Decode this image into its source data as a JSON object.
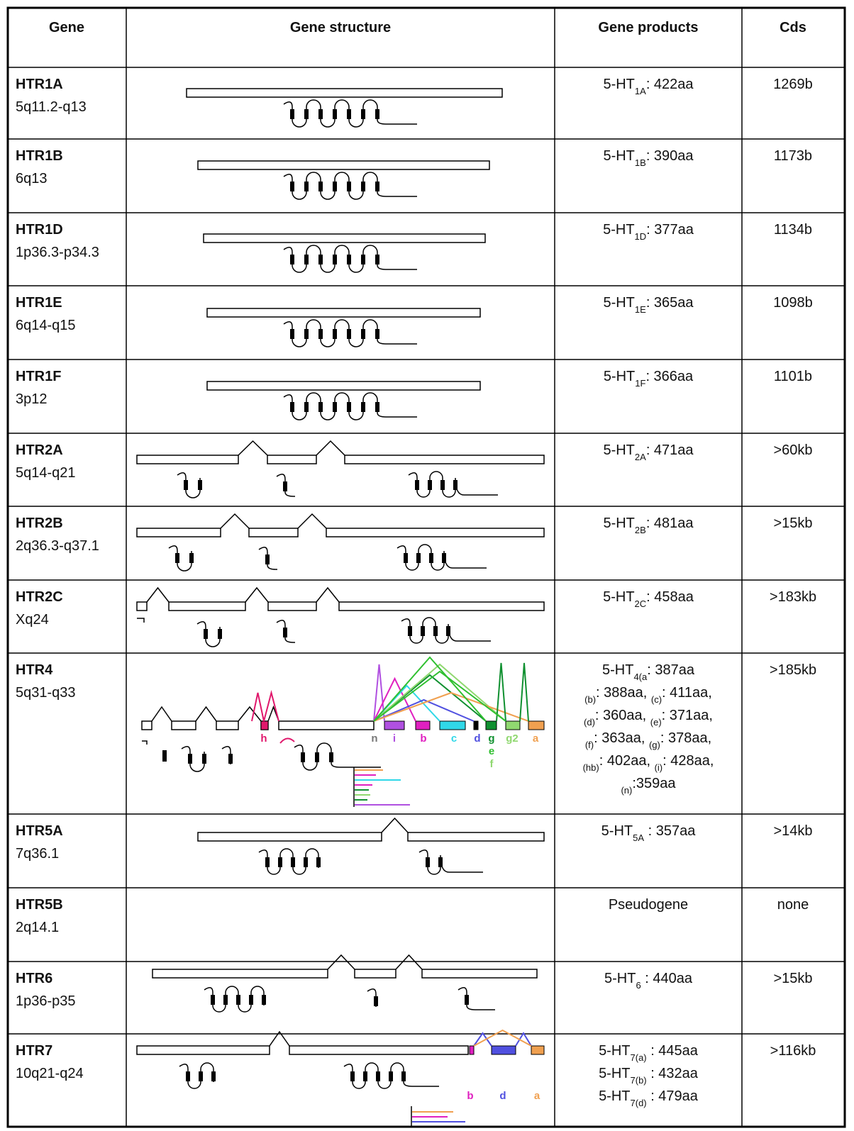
{
  "table": {
    "header": [
      "Gene",
      "Gene structure",
      "Gene products",
      "Cds"
    ],
    "rows": [
      {
        "gene": "HTR1A",
        "location": "5q11.2-q13",
        "products": [
          [
            {
              "text": "5-HT"
            },
            {
              "sub": "1A"
            },
            {
              "text": ": 422aa"
            }
          ]
        ],
        "cds": "1269b"
      },
      {
        "gene": "HTR1B",
        "location": "6q13",
        "products": [
          [
            {
              "text": "5-HT"
            },
            {
              "sub": "1B"
            },
            {
              "text": ": 390aa"
            }
          ]
        ],
        "cds": "1173b"
      },
      {
        "gene": "HTR1D",
        "location": "1p36.3-p34.3",
        "products": [
          [
            {
              "text": "5-HT"
            },
            {
              "sub": "1D"
            },
            {
              "text": ": 377aa"
            }
          ]
        ],
        "cds": "1134b"
      },
      {
        "gene": "HTR1E",
        "location": "6q14-q15",
        "products": [
          [
            {
              "text": "5-HT"
            },
            {
              "sub": "1E"
            },
            {
              "text": ": 365aa"
            }
          ]
        ],
        "cds": "1098b"
      },
      {
        "gene": "HTR1F",
        "location": "3p12",
        "products": [
          [
            {
              "text": "5-HT"
            },
            {
              "sub": "1F"
            },
            {
              "text": ": 366aa"
            }
          ]
        ],
        "cds": "1101b"
      },
      {
        "gene": "HTR2A",
        "location": "5q14-q21",
        "products": [
          [
            {
              "text": "5-HT"
            },
            {
              "sub": "2A"
            },
            {
              "text": ": 471aa"
            }
          ]
        ],
        "cds": ">60kb"
      },
      {
        "gene": "HTR2B",
        "location": "2q36.3-q37.1",
        "products": [
          [
            {
              "text": "5-HT"
            },
            {
              "sub": "2B"
            },
            {
              "text": ": 481aa"
            }
          ]
        ],
        "cds": ">15kb"
      },
      {
        "gene": "HTR2C",
        "location": "Xq24",
        "products": [
          [
            {
              "text": "5-HT"
            },
            {
              "sub": "2C"
            },
            {
              "text": ": 458aa"
            }
          ]
        ],
        "cds": ">183kb"
      },
      {
        "gene": "HTR4",
        "location": "5q31-q33",
        "products": [
          [
            {
              "text": "5-HT"
            },
            {
              "sub": "4(a"
            },
            {
              "text": ": 387aa"
            }
          ],
          [
            {
              "sub": "(b)"
            },
            {
              "text": ": 388aa, "
            },
            {
              "sub": "(c)"
            },
            {
              "text": ": 411aa,"
            }
          ],
          [
            {
              "sub": "(d)"
            },
            {
              "text": ": 360aa, "
            },
            {
              "sub": "(e)"
            },
            {
              "text": ": 371aa,"
            }
          ],
          [
            {
              "sub": "(f)"
            },
            {
              "text": ": 363aa, "
            },
            {
              "sub": "(g)"
            },
            {
              "text": ": 378aa,"
            }
          ],
          [
            {
              "sub": "(hb)"
            },
            {
              "text": ": 402aa, "
            },
            {
              "sub": "(i)"
            },
            {
              "text": ": 428aa,"
            }
          ],
          [
            {
              "sub": "(n)"
            },
            {
              "text": ":359aa"
            }
          ]
        ],
        "labels": [
          {
            "text": "h",
            "color": "#e0186c"
          },
          {
            "text": "n",
            "color": "#777777"
          },
          {
            "text": "i",
            "color": "#b050e0"
          },
          {
            "text": "b",
            "color": "#e020c0"
          },
          {
            "text": "c",
            "color": "#30d8e8"
          },
          {
            "text": "d",
            "color": "#5050e0"
          },
          {
            "text": "g",
            "color": "#109030"
          },
          {
            "text": "g2",
            "color": "#90d870"
          },
          {
            "text": "a",
            "color": "#f0a050"
          },
          {
            "text": "e",
            "color": "#30c030"
          },
          {
            "text": "f",
            "color": "#90d870"
          }
        ],
        "cds": ">185kb"
      },
      {
        "gene": "HTR5A",
        "location": "7q36.1",
        "products": [
          [
            {
              "text": "5-HT"
            },
            {
              "sub": "5A"
            },
            {
              "text": " : 357aa"
            }
          ]
        ],
        "cds": ">14kb"
      },
      {
        "gene": "HTR5B",
        "location": "2q14.1",
        "products": [
          [
            {
              "text": "Pseudogene"
            }
          ]
        ],
        "cds": "none"
      },
      {
        "gene": "HTR6",
        "location": "1p36-p35",
        "products": [
          [
            {
              "text": "5-HT"
            },
            {
              "sub": "6"
            },
            {
              "text": " : 440aa"
            }
          ]
        ],
        "cds": ">15kb"
      },
      {
        "gene": "HTR7",
        "location": "10q21-q24",
        "products": [
          [
            {
              "text": "5-HT"
            },
            {
              "sub": "7(a)"
            },
            {
              "text": " : 445aa"
            }
          ],
          [
            {
              "text": "5-HT"
            },
            {
              "sub": "7(b)"
            },
            {
              "text": " : 432aa"
            }
          ],
          [
            {
              "text": "5-HT"
            },
            {
              "sub": "7(d)"
            },
            {
              "text": " : 479aa"
            }
          ]
        ],
        "labels": [
          {
            "text": "b",
            "color": "#e020c0"
          },
          {
            "text": "d",
            "color": "#5050e0"
          },
          {
            "text": "a",
            "color": "#f0a050"
          }
        ],
        "cds": ">116kb"
      }
    ]
  }
}
